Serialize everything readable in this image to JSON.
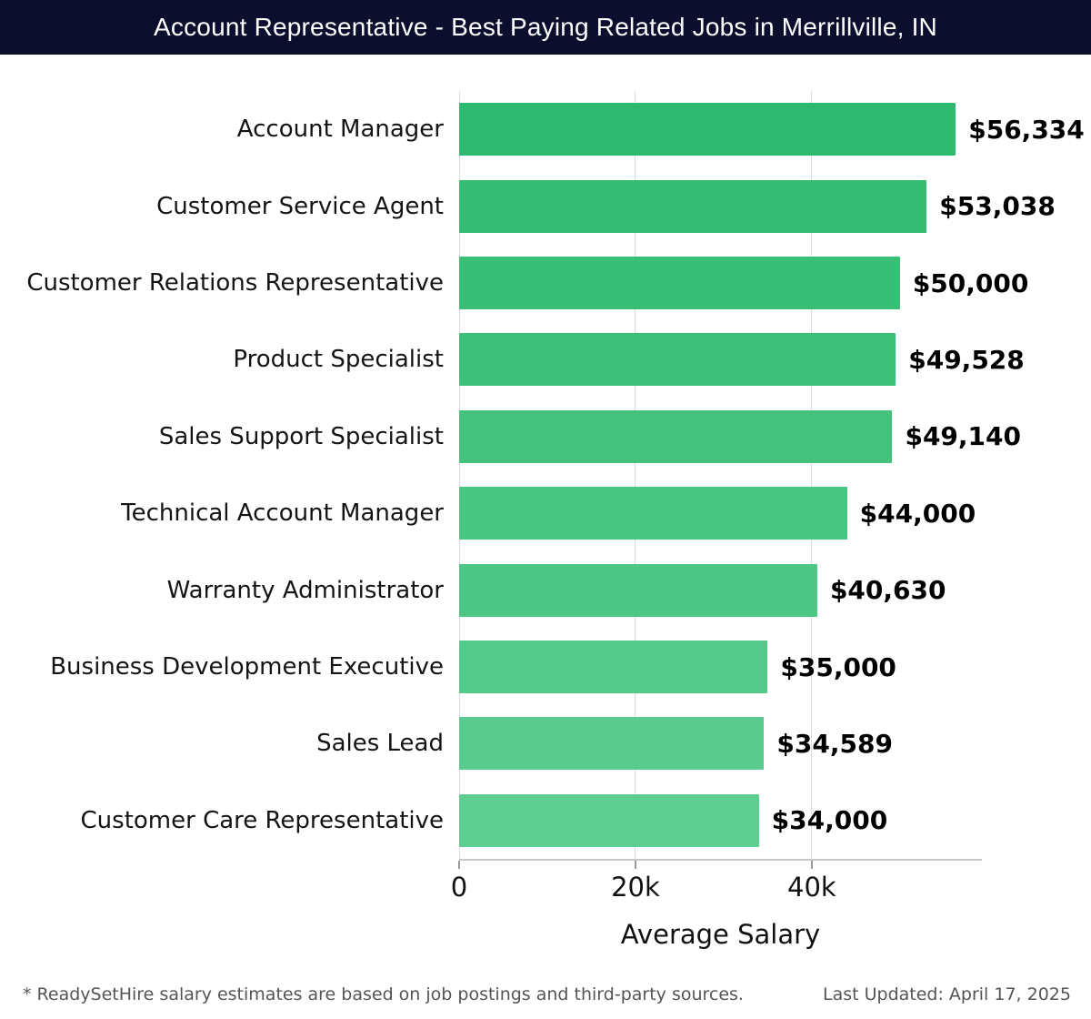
{
  "header": {
    "title": "Account Representative - Best Paying Related Jobs in Merrillville, IN",
    "background_color": "#0b0e2d",
    "text_color": "#ffffff"
  },
  "chart_data": {
    "type": "bar",
    "orientation": "horizontal",
    "title": "Account Representative - Best Paying Related Jobs in Merrillville, IN",
    "categories": [
      "Account Manager",
      "Customer Service Agent",
      "Customer Relations Representative",
      "Product Specialist",
      "Sales Support Specialist",
      "Technical Account Manager",
      "Warranty Administrator",
      "Business Development Executive",
      "Sales Lead",
      "Customer Care Representative"
    ],
    "values": [
      56334,
      53038,
      50000,
      49528,
      49140,
      44000,
      40630,
      35000,
      34589,
      34000
    ],
    "value_labels": [
      "$56,334",
      "$53,038",
      "$50,000",
      "$49,528",
      "$49,140",
      "$44,000",
      "$40,630",
      "$35,000",
      "$34,589",
      "$34,000"
    ],
    "xlabel": "Average Salary",
    "ylabel": "",
    "x_ticks": [
      {
        "value": 0,
        "label": "0"
      },
      {
        "value": 20000,
        "label": "20k"
      },
      {
        "value": 40000,
        "label": "40k"
      }
    ],
    "xlim": [
      0,
      59300
    ],
    "grid": true,
    "legend": false,
    "bar_color_start": "#2eba6e",
    "bar_color_end": "#5ecd92",
    "gridline_color": "#dcdcdc",
    "axis_line_color": "#c8c8c8"
  },
  "footer": {
    "note": "* ReadySetHire salary estimates are based on job postings and third-party sources.",
    "last_updated": "Last Updated: April 17, 2025"
  }
}
